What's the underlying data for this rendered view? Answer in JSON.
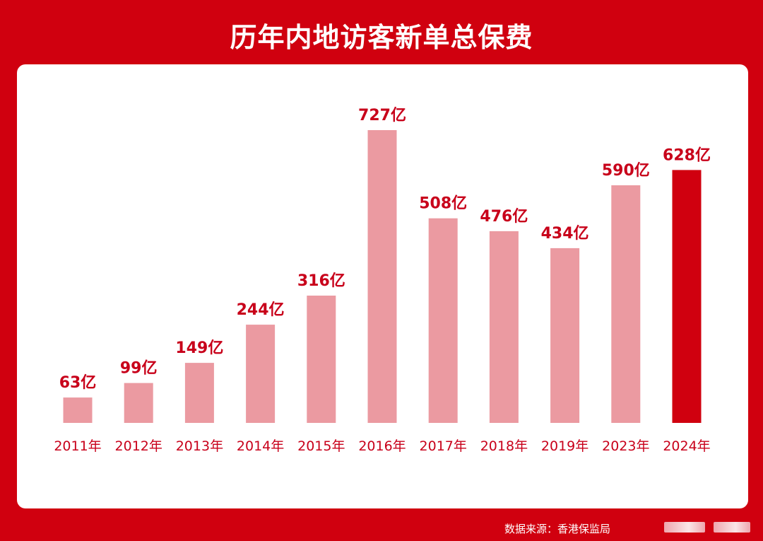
{
  "title": "历年内地访客新单总保费",
  "source": "数据来源：香港保监局",
  "colors": {
    "background": "#d0000f",
    "bar": "#eb9aa1",
    "bar_highlight": "#d0000f",
    "label": "#c8001a"
  },
  "chart_data": {
    "type": "bar",
    "categories": [
      "2011年",
      "2012年",
      "2013年",
      "2014年",
      "2015年",
      "2016年",
      "2017年",
      "2018年",
      "2019年",
      "2023年",
      "2024年"
    ],
    "values": [
      63,
      99,
      149,
      244,
      316,
      727,
      508,
      476,
      434,
      590,
      628
    ],
    "value_labels": [
      "63亿",
      "99亿",
      "149亿",
      "244亿",
      "316亿",
      "727亿",
      "508亿",
      "476亿",
      "434亿",
      "590亿",
      "628亿"
    ],
    "unit": "亿",
    "highlight_index": 10,
    "title": "历年内地访客新单总保费",
    "xlabel": "",
    "ylabel": "",
    "ylim": [
      0,
      727
    ],
    "grid": false,
    "legend": "none"
  }
}
